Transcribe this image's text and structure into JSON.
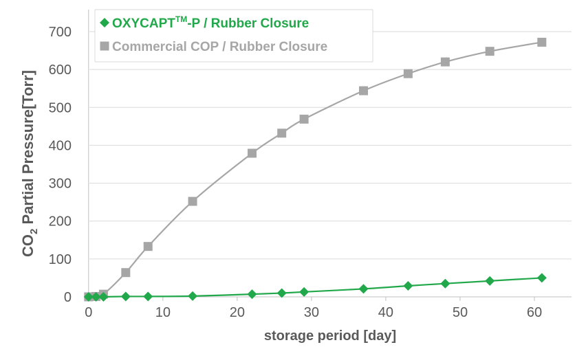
{
  "chart_data": {
    "type": "line",
    "title": "",
    "xlabel": "storage period [day]",
    "ylabel": "CO₂ Partial Pressure[Torr]",
    "xlim": [
      -1,
      65
    ],
    "ylim": [
      0,
      700
    ],
    "xticks": [
      0,
      10,
      20,
      30,
      40,
      50,
      60
    ],
    "yticks": [
      0,
      100,
      200,
      300,
      400,
      500,
      600,
      700
    ],
    "grid": "horizontal",
    "legend": "top-left",
    "series": [
      {
        "name": "OXYCAPT™-P / Rubber Closure",
        "color": "#21a84a",
        "marker": "diamond",
        "x": [
          0,
          1,
          2,
          5,
          8,
          14,
          22,
          26,
          29,
          37,
          43,
          48,
          54,
          61
        ],
        "y": [
          0,
          0,
          0,
          1,
          1,
          2,
          7,
          10,
          13,
          21,
          29,
          35,
          42,
          50
        ]
      },
      {
        "name": "Commercial COP / Rubber Closure",
        "color": "#a6a6a6",
        "marker": "square",
        "x": [
          0,
          1,
          2,
          5,
          8,
          14,
          22,
          26,
          29,
          37,
          43,
          48,
          54,
          61
        ],
        "y": [
          0,
          1,
          7,
          64,
          133,
          252,
          379,
          432,
          469,
          544,
          589,
          620,
          648,
          672
        ]
      }
    ]
  }
}
